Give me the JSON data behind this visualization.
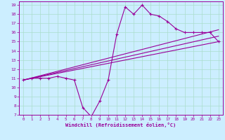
{
  "xlabel": "Windchill (Refroidissement éolien,°C)",
  "bg_color": "#cceeff",
  "line_color": "#990099",
  "grid_color": "#aaddcc",
  "axis_bg": "#cc99cc",
  "main_x": [
    0,
    1,
    2,
    3,
    4,
    5,
    6,
    7,
    8,
    9,
    10,
    11,
    12,
    13,
    14,
    15,
    16,
    17,
    18,
    19,
    20,
    21,
    22,
    23
  ],
  "main_y": [
    10.8,
    11.0,
    11.0,
    11.0,
    11.2,
    11.0,
    10.8,
    7.8,
    6.8,
    8.5,
    10.8,
    15.8,
    18.8,
    18.0,
    19.0,
    18.0,
    17.8,
    17.2,
    16.4,
    16.0,
    16.0,
    16.0,
    16.0,
    15.0
  ],
  "line2_x": [
    0,
    23
  ],
  "line2_y": [
    10.8,
    15.0
  ],
  "line3_x": [
    0,
    23
  ],
  "line3_y": [
    10.8,
    15.6
  ],
  "line4_x": [
    0,
    23
  ],
  "line4_y": [
    10.8,
    16.3
  ],
  "xlim": [
    -0.5,
    23.5
  ],
  "ylim": [
    7,
    19.4
  ],
  "xticks": [
    0,
    1,
    2,
    3,
    4,
    5,
    6,
    7,
    8,
    9,
    10,
    11,
    12,
    13,
    14,
    15,
    16,
    17,
    18,
    19,
    20,
    21,
    22,
    23
  ],
  "yticks": [
    7,
    8,
    9,
    10,
    11,
    12,
    13,
    14,
    15,
    16,
    17,
    18,
    19
  ]
}
